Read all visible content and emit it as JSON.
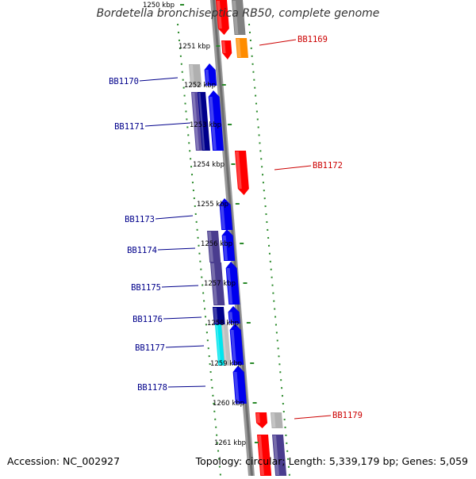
{
  "title": "Bordetella bronchiseptica RB50, complete genome",
  "footer": {
    "accession": "Accession: NC_002927",
    "summary": "Topology: circular; Length: 5,339,179 bp; Genes: 5,059"
  },
  "colors": {
    "backbone": "#8a8a8a",
    "ruler": "#2a8a2a",
    "forward_label": "#00008b",
    "reverse_label": "#cc0000"
  },
  "ticks": [
    "1250 kbp",
    "1251 kbp",
    "1252 kbp",
    "1253 kbp",
    "1254 kbp",
    "1255 kbp",
    "1256 kbp",
    "1257 kbp",
    "1258 kbp",
    "1259 kbp",
    "1260 kbp",
    "1261 kbp"
  ],
  "gene_labels": {
    "left": [
      "BB1170",
      "BB1171",
      "BB1173",
      "BB1174",
      "BB1175",
      "BB1176",
      "BB1177",
      "BB1178"
    ],
    "right": [
      "BB1169",
      "BB1172",
      "BB1179"
    ]
  }
}
